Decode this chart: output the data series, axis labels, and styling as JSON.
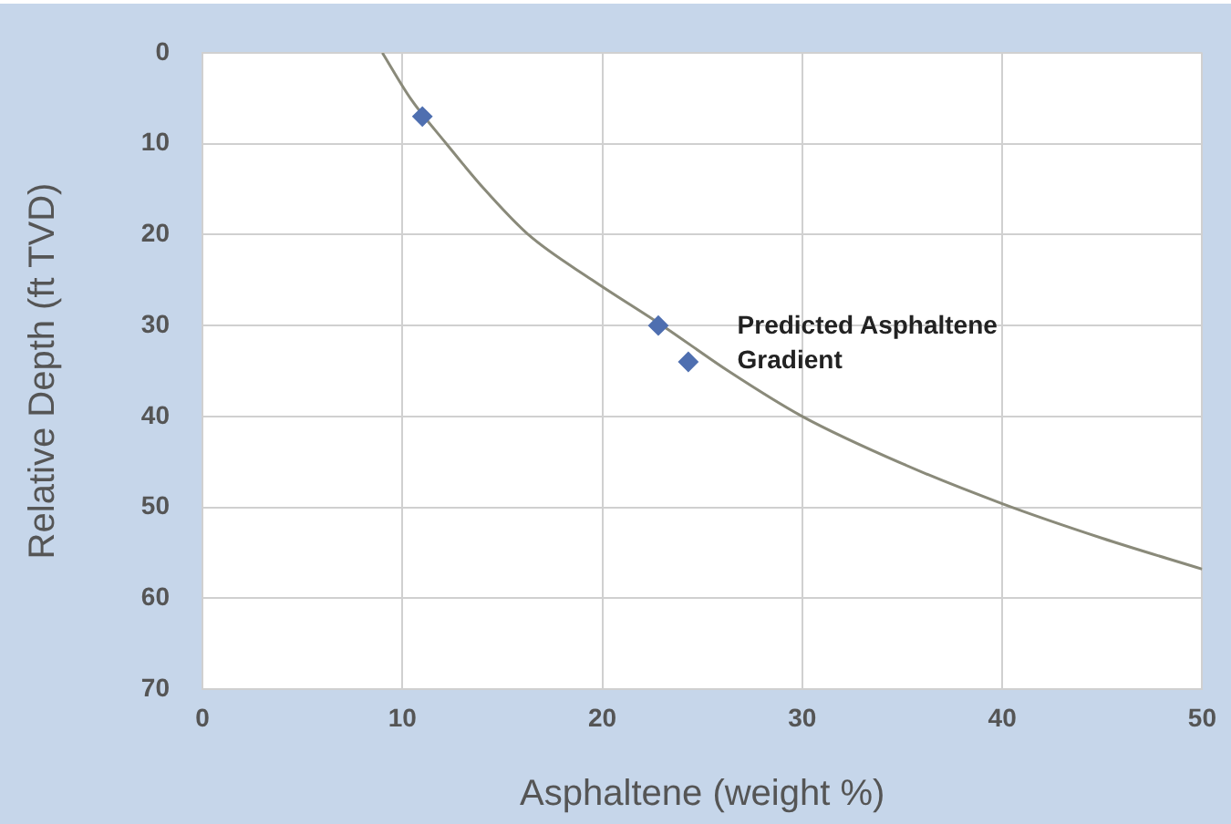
{
  "chart_data": {
    "type": "scatter",
    "xlabel": "Asphaltene (weight %)",
    "ylabel": "Relative Depth (ft TVD)",
    "series": [
      {
        "type": "scatter",
        "color": "#4f6fb0",
        "x": [
          11,
          22.8,
          24.3
        ],
        "values": [
          7,
          30,
          34
        ]
      },
      {
        "type": "line",
        "color": "#8a8a7a",
        "marker": "none",
        "line_style": "solid",
        "x": [
          9,
          10.4,
          12.2,
          14.1,
          16.3,
          19.5,
          23,
          26.3,
          30,
          35,
          40,
          45,
          50
        ],
        "values": [
          0,
          5,
          10,
          15,
          20,
          25,
          30,
          35,
          40,
          45.2,
          49.6,
          53.4,
          56.8
        ]
      }
    ],
    "xlim": [
      0,
      50
    ],
    "xticks": [
      0,
      10,
      20,
      30,
      40,
      50
    ],
    "ylim": [
      70,
      0
    ],
    "yticks": [
      0,
      10,
      20,
      30,
      40,
      50,
      60,
      70
    ],
    "grid": true,
    "legend": false,
    "marker": "diamond",
    "annotations": [
      "Predicted Asphaltene Gradient"
    ]
  }
}
